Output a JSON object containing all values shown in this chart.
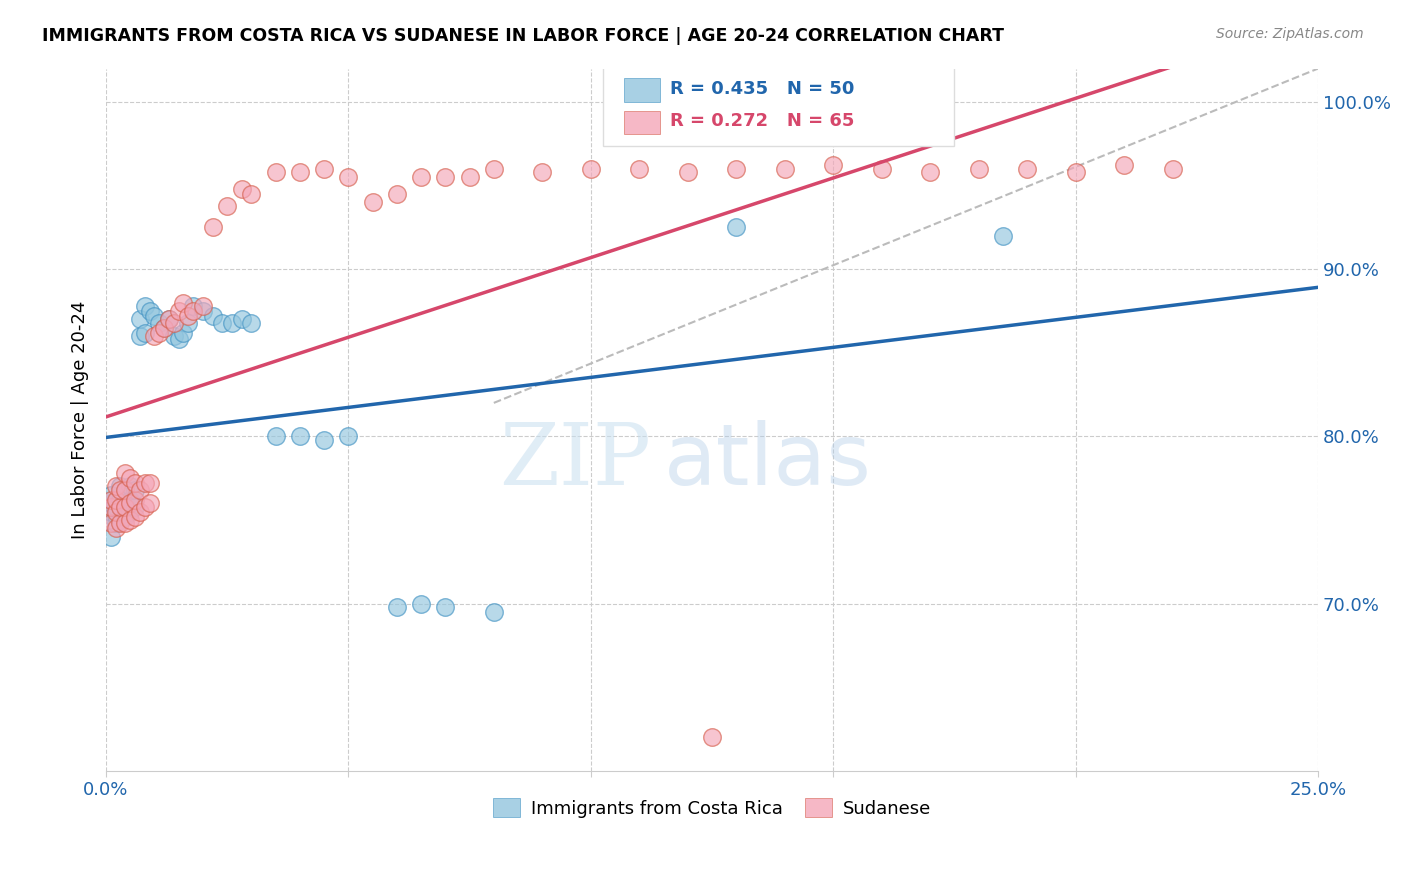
{
  "title": "IMMIGRANTS FROM COSTA RICA VS SUDANESE IN LABOR FORCE | AGE 20-24 CORRELATION CHART",
  "source": "Source: ZipAtlas.com",
  "ylabel": "In Labor Force | Age 20-24",
  "watermark_zip": "ZIP",
  "watermark_atlas": "atlas",
  "xlim": [
    0.0,
    0.25
  ],
  "ylim": [
    0.6,
    1.02
  ],
  "yticks": [
    0.7,
    0.8,
    0.9,
    1.0
  ],
  "yticklabels": [
    "70.0%",
    "80.0%",
    "90.0%",
    "100.0%"
  ],
  "xtick_positions": [
    0.0,
    0.05,
    0.1,
    0.15,
    0.2,
    0.25
  ],
  "blue_color": "#92c5de",
  "blue_edge_color": "#4393c3",
  "pink_color": "#f4a6b8",
  "pink_edge_color": "#d6604d",
  "blue_line_color": "#2166ac",
  "pink_line_color": "#d6476b",
  "blue_R": 0.435,
  "blue_N": 50,
  "pink_R": 0.272,
  "pink_N": 65,
  "blue_scatter_x": [
    0.001,
    0.001,
    0.001,
    0.001,
    0.001,
    0.002,
    0.002,
    0.002,
    0.003,
    0.003,
    0.003,
    0.003,
    0.004,
    0.004,
    0.004,
    0.005,
    0.005,
    0.005,
    0.006,
    0.006,
    0.007,
    0.007,
    0.008,
    0.008,
    0.009,
    0.01,
    0.011,
    0.012,
    0.013,
    0.014,
    0.015,
    0.016,
    0.017,
    0.018,
    0.02,
    0.022,
    0.024,
    0.026,
    0.028,
    0.03,
    0.035,
    0.04,
    0.045,
    0.05,
    0.06,
    0.065,
    0.07,
    0.08,
    0.13,
    0.185
  ],
  "blue_scatter_y": [
    0.74,
    0.755,
    0.76,
    0.762,
    0.765,
    0.748,
    0.753,
    0.758,
    0.75,
    0.758,
    0.762,
    0.77,
    0.752,
    0.76,
    0.768,
    0.755,
    0.762,
    0.77,
    0.758,
    0.768,
    0.86,
    0.87,
    0.862,
    0.878,
    0.875,
    0.872,
    0.868,
    0.865,
    0.87,
    0.86,
    0.858,
    0.862,
    0.868,
    0.878,
    0.875,
    0.872,
    0.868,
    0.868,
    0.87,
    0.868,
    0.8,
    0.8,
    0.798,
    0.8,
    0.698,
    0.7,
    0.698,
    0.695,
    0.925,
    0.92
  ],
  "pink_scatter_x": [
    0.001,
    0.001,
    0.001,
    0.002,
    0.002,
    0.002,
    0.002,
    0.003,
    0.003,
    0.003,
    0.004,
    0.004,
    0.004,
    0.004,
    0.005,
    0.005,
    0.005,
    0.006,
    0.006,
    0.006,
    0.007,
    0.007,
    0.008,
    0.008,
    0.009,
    0.009,
    0.01,
    0.011,
    0.012,
    0.013,
    0.014,
    0.015,
    0.016,
    0.017,
    0.018,
    0.02,
    0.022,
    0.025,
    0.028,
    0.03,
    0.035,
    0.04,
    0.045,
    0.05,
    0.055,
    0.06,
    0.065,
    0.07,
    0.075,
    0.08,
    0.09,
    0.1,
    0.11,
    0.12,
    0.13,
    0.14,
    0.15,
    0.16,
    0.17,
    0.18,
    0.19,
    0.2,
    0.21,
    0.22,
    0.125
  ],
  "pink_scatter_y": [
    0.748,
    0.758,
    0.762,
    0.745,
    0.755,
    0.762,
    0.77,
    0.748,
    0.758,
    0.768,
    0.748,
    0.758,
    0.768,
    0.778,
    0.75,
    0.76,
    0.775,
    0.752,
    0.762,
    0.772,
    0.755,
    0.768,
    0.758,
    0.772,
    0.76,
    0.772,
    0.86,
    0.862,
    0.865,
    0.87,
    0.868,
    0.875,
    0.88,
    0.872,
    0.875,
    0.878,
    0.925,
    0.938,
    0.948,
    0.945,
    0.958,
    0.958,
    0.96,
    0.955,
    0.94,
    0.945,
    0.955,
    0.955,
    0.955,
    0.96,
    0.958,
    0.96,
    0.96,
    0.958,
    0.96,
    0.96,
    0.962,
    0.96,
    0.958,
    0.96,
    0.96,
    0.958,
    0.962,
    0.96,
    0.62
  ],
  "legend_blue_label": "Immigrants from Costa Rica",
  "legend_pink_label": "Sudanese",
  "background_color": "#ffffff",
  "grid_color": "#cccccc"
}
